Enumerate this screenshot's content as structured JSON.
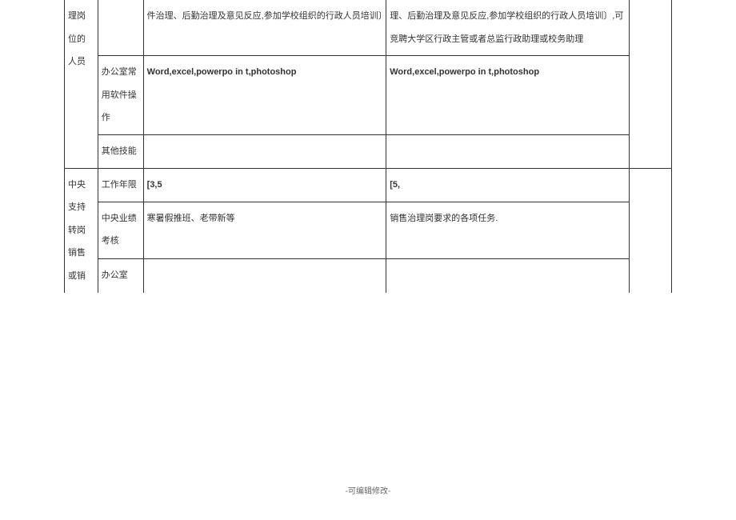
{
  "table": {
    "rows": [
      {
        "col1": "理岗位的人员",
        "col2": "",
        "col3": "件治理、后勤治理及意见反应,参加学校组织的行政人员培训〕",
        "col4": "理、后勤治理及意见反应,参加学校组织的行政人员培训〕,可竞聘大学区行政主管或者总监行政助理或校务助理",
        "col5": ""
      },
      {
        "col2": "办公室常用软件操作",
        "col3": "Word,excel,powerpo in t,photoshop",
        "col4": "Word,excel,powerpo in t,photoshop"
      },
      {
        "col2": "其他技能",
        "col3": "",
        "col4": ""
      },
      {
        "col1": "中央支持转岗销售或销",
        "col2": "工作年限",
        "col3": "[3,5",
        "col4": "[5,",
        "col5": ""
      },
      {
        "col2": "中央业绩考核",
        "col3": "寒暑假推班、老带新等",
        "col4": "销售治理岗要求的各项任务."
      },
      {
        "col2": "办公室",
        "col3": "",
        "col4": ""
      }
    ]
  },
  "footer": "-可编辑修改-",
  "styles": {
    "font_size_cell": 11,
    "font_size_footer": 10,
    "border_color": "#333333",
    "text_color": "#333333",
    "footer_color": "#666666",
    "background": "#ffffff"
  }
}
